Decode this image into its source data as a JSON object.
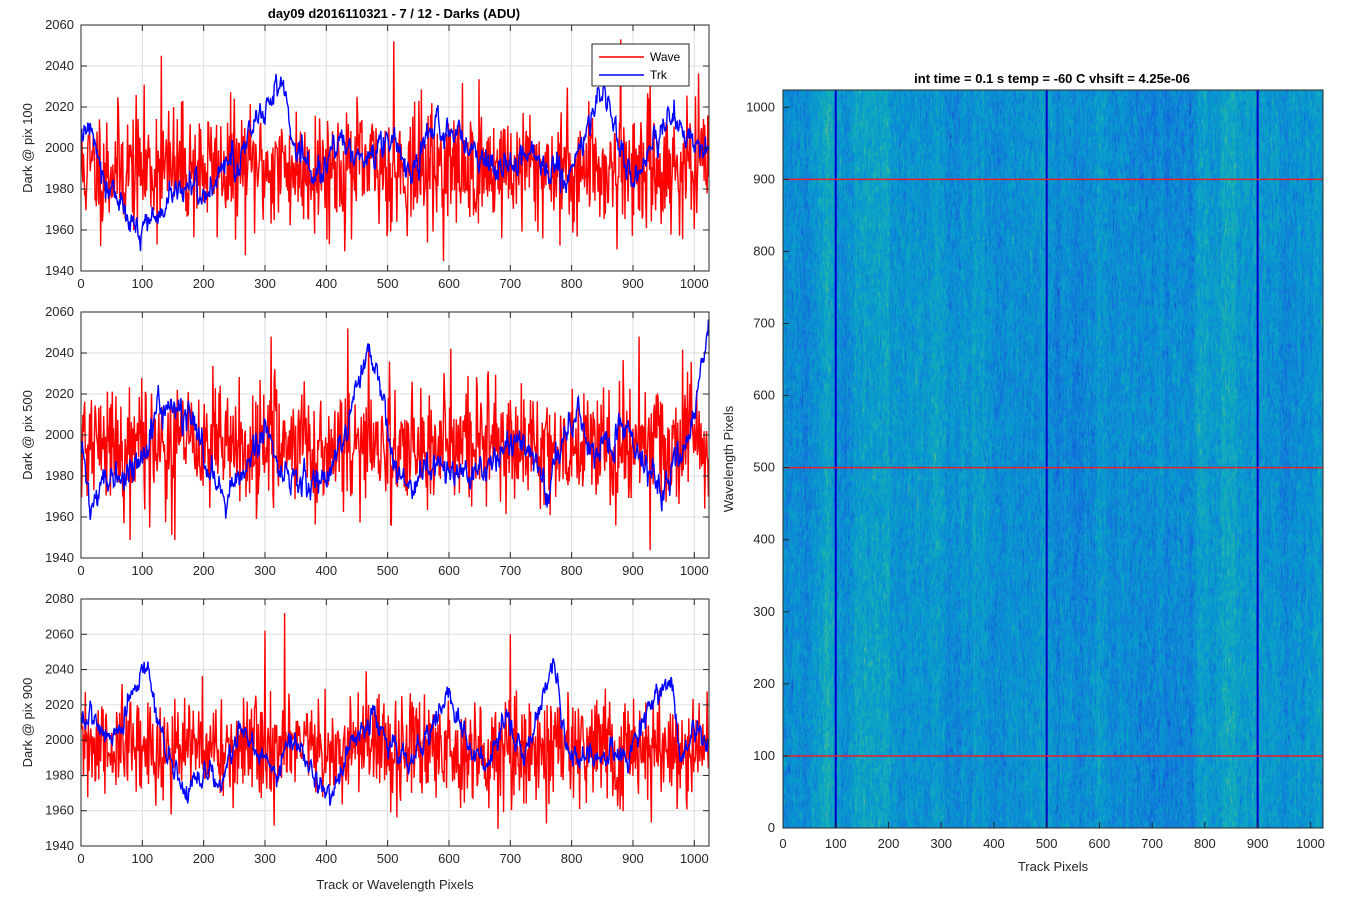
{
  "figure": {
    "title": "day09 d2016110321 - 7 / 12 - Darks (ADU)"
  },
  "chart_data": [
    {
      "type": "line",
      "ylabel": "Dark @ pix 100",
      "xlabel": "",
      "xlim": [
        0,
        1024
      ],
      "ylim": [
        1940,
        2060
      ],
      "xticks": [
        0,
        100,
        200,
        300,
        400,
        500,
        600,
        700,
        800,
        900,
        1000
      ],
      "yticks": [
        1940,
        1960,
        1980,
        2000,
        2020,
        2040,
        2060
      ],
      "grid": true,
      "legend": "top-right",
      "series": [
        {
          "name": "Wave",
          "color": "#ff0000",
          "kind": "noise",
          "mean": 1990,
          "sd": 15,
          "seed": 11,
          "peaks": [
            [
              131,
              2045
            ],
            [
              510,
              2052
            ],
            [
              880,
              2053
            ]
          ]
        },
        {
          "name": "Trk",
          "color": "#0000ff",
          "kind": "walk",
          "seed": 12,
          "anchors": [
            [
              0,
              2005
            ],
            [
              15,
              2012
            ],
            [
              40,
              1985
            ],
            [
              70,
              1970
            ],
            [
              90,
              1958
            ],
            [
              110,
              1965
            ],
            [
              140,
              1970
            ],
            [
              170,
              1985
            ],
            [
              200,
              1975
            ],
            [
              230,
              1990
            ],
            [
              260,
              1995
            ],
            [
              280,
              2010
            ],
            [
              310,
              2025
            ],
            [
              325,
              2038
            ],
            [
              345,
              2005
            ],
            [
              380,
              1985
            ],
            [
              420,
              2000
            ],
            [
              460,
              1995
            ],
            [
              500,
              2005
            ],
            [
              540,
              1990
            ],
            [
              580,
              2012
            ],
            [
              620,
              2005
            ],
            [
              660,
              1990
            ],
            [
              700,
              1990
            ],
            [
              740,
              1995
            ],
            [
              780,
              1990
            ],
            [
              800,
              1988
            ],
            [
              830,
              2015
            ],
            [
              850,
              2030
            ],
            [
              870,
              2005
            ],
            [
              900,
              1985
            ],
            [
              930,
              2000
            ],
            [
              960,
              2015
            ],
            [
              990,
              2008
            ],
            [
              1010,
              2000
            ],
            [
              1024,
              1995
            ]
          ]
        }
      ]
    },
    {
      "type": "line",
      "ylabel": "Dark @ pix 500",
      "xlabel": "",
      "xlim": [
        0,
        1024
      ],
      "ylim": [
        1940,
        2060
      ],
      "xticks": [
        0,
        100,
        200,
        300,
        400,
        500,
        600,
        700,
        800,
        900,
        1000
      ],
      "yticks": [
        1940,
        1960,
        1980,
        2000,
        2020,
        2040,
        2060
      ],
      "grid": true,
      "series": [
        {
          "name": "Wave",
          "color": "#ff0000",
          "kind": "noise",
          "mean": 1995,
          "sd": 15,
          "seed": 21,
          "peaks": [
            [
              435,
              2052
            ],
            [
              310,
              2048
            ],
            [
              910,
              2048
            ]
          ]
        },
        {
          "name": "Trk",
          "color": "#0000ff",
          "kind": "walk",
          "seed": 22,
          "anchors": [
            [
              0,
              1995
            ],
            [
              15,
              1965
            ],
            [
              40,
              1975
            ],
            [
              70,
              1980
            ],
            [
              100,
              1990
            ],
            [
              120,
              2010
            ],
            [
              150,
              2015
            ],
            [
              180,
              2005
            ],
            [
              210,
              1985
            ],
            [
              240,
              1970
            ],
            [
              270,
              1985
            ],
            [
              300,
              2005
            ],
            [
              330,
              1980
            ],
            [
              360,
              1975
            ],
            [
              400,
              1980
            ],
            [
              440,
              2010
            ],
            [
              470,
              2040
            ],
            [
              490,
              2020
            ],
            [
              510,
              1980
            ],
            [
              540,
              1975
            ],
            [
              580,
              1985
            ],
            [
              620,
              1980
            ],
            [
              660,
              1985
            ],
            [
              700,
              2000
            ],
            [
              730,
              1990
            ],
            [
              760,
              1975
            ],
            [
              780,
              1995
            ],
            [
              810,
              2015
            ],
            [
              830,
              1990
            ],
            [
              860,
              1995
            ],
            [
              890,
              2005
            ],
            [
              920,
              1985
            ],
            [
              950,
              1975
            ],
            [
              980,
              1990
            ],
            [
              1000,
              2010
            ],
            [
              1024,
              2055
            ]
          ]
        }
      ]
    },
    {
      "type": "line",
      "ylabel": "Dark @ pix 900",
      "xlabel": "Track or Wavelength Pixels",
      "xlim": [
        0,
        1024
      ],
      "ylim": [
        1940,
        2080
      ],
      "xticks": [
        0,
        100,
        200,
        300,
        400,
        500,
        600,
        700,
        800,
        900,
        1000
      ],
      "yticks": [
        1940,
        1960,
        1980,
        2000,
        2020,
        2040,
        2060,
        2080
      ],
      "grid": true,
      "series": [
        {
          "name": "Wave",
          "color": "#ff0000",
          "kind": "noise",
          "mean": 1995,
          "sd": 15,
          "seed": 31,
          "peaks": [
            [
              300,
              2062
            ],
            [
              332,
              2072
            ],
            [
              700,
              2060
            ]
          ]
        },
        {
          "name": "Trk",
          "color": "#0000ff",
          "kind": "walk",
          "seed": 32,
          "anchors": [
            [
              0,
              2010
            ],
            [
              20,
              2015
            ],
            [
              50,
              2000
            ],
            [
              90,
              2030
            ],
            [
              110,
              2040
            ],
            [
              140,
              1990
            ],
            [
              170,
              1970
            ],
            [
              200,
              1980
            ],
            [
              230,
              1975
            ],
            [
              260,
              2005
            ],
            [
              290,
              1990
            ],
            [
              320,
              1985
            ],
            [
              350,
              2005
            ],
            [
              380,
              1975
            ],
            [
              410,
              1965
            ],
            [
              440,
              2000
            ],
            [
              480,
              2010
            ],
            [
              500,
              2000
            ],
            [
              540,
              1985
            ],
            [
              570,
              2005
            ],
            [
              600,
              2025
            ],
            [
              630,
              1995
            ],
            [
              660,
              1985
            ],
            [
              690,
              2015
            ],
            [
              720,
              1990
            ],
            [
              750,
              2020
            ],
            [
              770,
              2045
            ],
            [
              790,
              1995
            ],
            [
              820,
              1990
            ],
            [
              860,
              1995
            ],
            [
              890,
              1990
            ],
            [
              930,
              2020
            ],
            [
              960,
              2035
            ],
            [
              980,
              1990
            ],
            [
              1000,
              2005
            ],
            [
              1024,
              1995
            ]
          ]
        }
      ]
    },
    {
      "type": "heatmap",
      "title": "int time = 0.1 s   temp = -60 C   vhsift = 4.25e-06",
      "xlabel": "Track Pixels",
      "ylabel": "Wavelength Pixels",
      "xlim": [
        0,
        1024
      ],
      "ylim": [
        0,
        1024
      ],
      "xticks": [
        0,
        100,
        200,
        300,
        400,
        500,
        600,
        700,
        800,
        900,
        1000
      ],
      "yticks": [
        0,
        100,
        200,
        300,
        400,
        500,
        600,
        700,
        800,
        900,
        1000
      ],
      "colormap": "parula",
      "vertical_lines": {
        "color": "#0000cc",
        "x": [
          100,
          500,
          900
        ]
      },
      "horizontal_lines": {
        "color": "#e8202a",
        "y": [
          100,
          500,
          900
        ]
      }
    }
  ]
}
